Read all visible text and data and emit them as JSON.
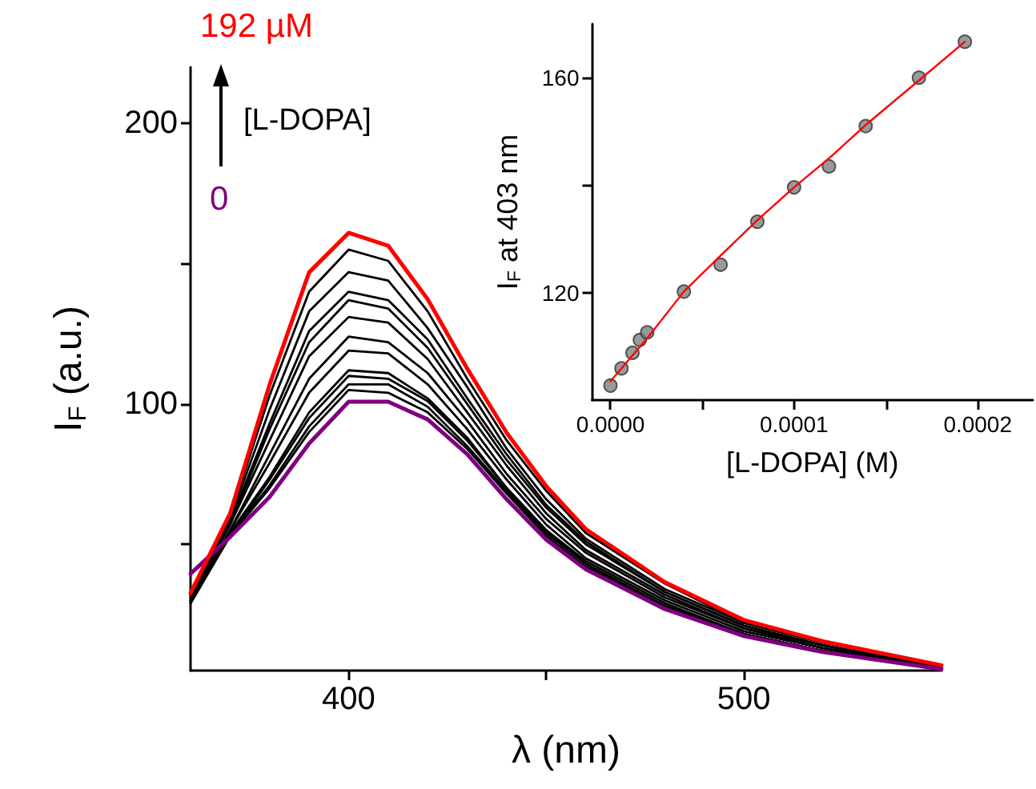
{
  "chart_data": [
    {
      "type": "line",
      "xlabel": "λ (nm)",
      "ylabel": "I$_{F}$ (a.u.)",
      "annotations": [
        "[L-DOPA]"
      ],
      "x": [
        360,
        370,
        380,
        390,
        400,
        410,
        420,
        430,
        440,
        450,
        460,
        480,
        500,
        520,
        550
      ],
      "xlim": [
        360,
        550
      ],
      "xticks": [
        400,
        {
          "value": 450,
          "label": null
        },
        500
      ],
      "ylim": [
        5,
        220
      ],
      "yticks": [
        {
          "value": 50,
          "label": null
        },
        100,
        {
          "value": 150,
          "label": null
        },
        200
      ],
      "marker": "none",
      "line_style": "solid",
      "series": [
        {
          "name": "0",
          "color": "#800080",
          "values": [
            39.5,
            52.6,
            66.9,
            85.9,
            100.8,
            100.8,
            94.5,
            82.1,
            66,
            51.6,
            41.1,
            26.9,
            17.3,
            11.6,
            5.5
          ]
        },
        {
          "color": "#000000",
          "values": [
            29,
            53,
            70,
            90,
            105,
            104,
            97,
            84,
            68,
            53,
            42,
            28,
            18,
            12,
            6
          ]
        },
        {
          "color": "#000000",
          "values": [
            29,
            53,
            71,
            92,
            107,
            107,
            99,
            85,
            69,
            54,
            43,
            28,
            18,
            12,
            6
          ]
        },
        {
          "color": "#000000",
          "values": [
            30,
            53,
            73,
            95,
            110,
            109,
            101,
            87,
            70,
            55,
            43,
            28,
            18,
            12,
            6
          ]
        },
        {
          "color": "#000000",
          "values": [
            30,
            54,
            74,
            97,
            112,
            111,
            102,
            88,
            70,
            55,
            44,
            29,
            18,
            12,
            6
          ]
        },
        {
          "color": "#000000",
          "values": [
            30,
            55,
            79,
            104,
            119,
            118,
            107,
            91,
            73,
            57,
            45,
            30,
            19,
            13,
            6
          ]
        },
        {
          "color": "#000000",
          "values": [
            30,
            55,
            82,
            109,
            124,
            122,
            111,
            94,
            75,
            59,
            47,
            31,
            20,
            13,
            6
          ]
        },
        {
          "color": "#000000",
          "values": [
            31,
            57,
            87,
            117,
            131,
            129,
            116,
            97,
            78,
            61,
            48,
            32,
            20,
            14,
            6
          ]
        },
        {
          "color": "#000000",
          "values": [
            31,
            57,
            91,
            122,
            137,
            134,
            120,
            100,
            80,
            63,
            50,
            33,
            21,
            14,
            6
          ]
        },
        {
          "color": "#000000",
          "values": [
            31,
            58,
            93,
            126,
            140,
            137,
            123,
            102,
            82,
            64,
            51,
            33,
            21,
            14,
            6
          ]
        },
        {
          "color": "#000000",
          "values": [
            32,
            59,
            98,
            133,
            147,
            144,
            127,
            106,
            84,
            66,
            52,
            34,
            22,
            15,
            7
          ]
        },
        {
          "color": "#000000",
          "values": [
            32,
            60,
            103,
            140,
            155,
            151,
            133,
            109,
            87,
            69,
            54,
            36,
            22,
            15,
            7
          ]
        },
        {
          "name": "192 µM",
          "color": "#ff0000",
          "values": [
            32.6,
            61,
            106.9,
            146.9,
            161,
            156.4,
            137.3,
            112.6,
            89.7,
            70.7,
            55.4,
            36.5,
            23,
            15.4,
            6.9
          ]
        }
      ]
    },
    {
      "type": "scatter",
      "xlabel": "[L-DOPA] (M)",
      "ylabel": "I$_{F}$ at 403 nm",
      "xlim": [
        -1e-05,
        0.00023
      ],
      "xticks": [
        {
          "value": 0,
          "label": "0.0000"
        },
        {
          "value": 5e-05,
          "label": null
        },
        {
          "value": 0.0001,
          "label": "0.0001"
        },
        {
          "value": 0.00015,
          "label": null
        },
        {
          "value": 0.0002,
          "label": "0.0002"
        }
      ],
      "ylim": [
        100,
        170
      ],
      "yticks": [
        120,
        {
          "value": 140,
          "label": null
        },
        160
      ],
      "series": [
        {
          "type": "scatter",
          "marker": "circle",
          "color": "#808080",
          "x": [
            0,
            6e-06,
            1.2e-05,
            1.6e-05,
            2e-05,
            4e-05,
            6e-05,
            8e-05,
            0.0001,
            0.000119,
            0.000139,
            0.000168,
            0.000193
          ],
          "values": [
            102.7,
            105.9,
            108.8,
            111.2,
            112.6,
            120.2,
            125.2,
            133.2,
            139.6,
            143.5,
            151,
            160,
            166.7
          ]
        },
        {
          "type": "line",
          "marker": "none",
          "color": "#ff0000",
          "x": [
            0,
            2e-05,
            4e-05,
            6e-05,
            8e-05,
            0.0001,
            0.00012,
            0.00014,
            0.000168,
            0.000193
          ],
          "values": [
            103.5,
            111.5,
            120.2,
            126.9,
            133.5,
            139.6,
            145.3,
            151.5,
            159.5,
            166.7
          ]
        }
      ]
    }
  ]
}
